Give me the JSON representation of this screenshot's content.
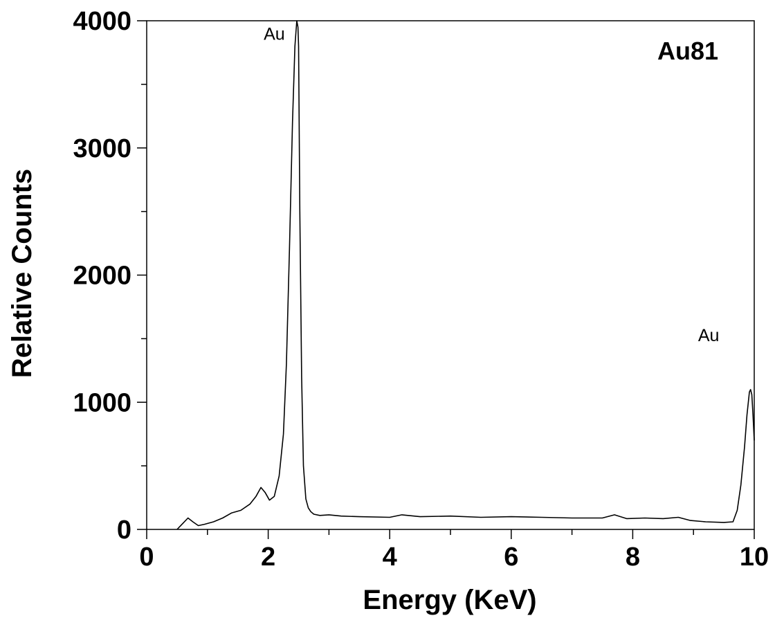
{
  "chart_data": {
    "type": "line",
    "title": "",
    "plot_label": "Au81",
    "xlabel": "Energy (KeV)",
    "ylabel": "Relative Counts",
    "xlim": [
      0,
      10
    ],
    "ylim": [
      0,
      4000
    ],
    "grid": false,
    "x_ticks": [
      0,
      2,
      4,
      6,
      8,
      10
    ],
    "x_tick_labels": [
      "0",
      "2",
      "4",
      "6",
      "8",
      "10"
    ],
    "y_ticks": [
      0,
      1000,
      2000,
      3000,
      4000
    ],
    "y_tick_labels": [
      "0",
      "1000",
      "2000",
      "3000",
      "4000"
    ],
    "annotations": [
      {
        "text": "Au",
        "x": 2.1,
        "y": 3850
      },
      {
        "text": "Au",
        "x": 9.25,
        "y": 1480
      }
    ],
    "series": [
      {
        "x": [
          0.5,
          0.6,
          0.68,
          0.76,
          0.85,
          0.95,
          1.1,
          1.25,
          1.4,
          1.55,
          1.7,
          1.8,
          1.88,
          1.95,
          2.02,
          2.1,
          2.18,
          2.25,
          2.3,
          2.35,
          2.4,
          2.44,
          2.47,
          2.49,
          2.5,
          2.52,
          2.55,
          2.58,
          2.62,
          2.66,
          2.7,
          2.75,
          2.85,
          3.0,
          3.2,
          3.5,
          4.0,
          4.2,
          4.5,
          5.0,
          5.5,
          6.0,
          6.5,
          7.0,
          7.5,
          7.7,
          7.9,
          8.2,
          8.5,
          8.75,
          8.95,
          9.2,
          9.5,
          9.65,
          9.72,
          9.78,
          9.84,
          9.88,
          9.92,
          9.94,
          9.96,
          9.98,
          10.0
        ],
        "values": [
          0,
          50,
          90,
          60,
          30,
          40,
          60,
          90,
          130,
          150,
          200,
          260,
          330,
          290,
          230,
          260,
          420,
          750,
          1300,
          2200,
          3200,
          3800,
          4000,
          3950,
          3800,
          2500,
          1200,
          500,
          240,
          170,
          140,
          120,
          110,
          115,
          105,
          100,
          95,
          115,
          100,
          105,
          95,
          100,
          95,
          90,
          90,
          115,
          85,
          90,
          85,
          95,
          70,
          60,
          55,
          60,
          150,
          350,
          650,
          900,
          1080,
          1100,
          1060,
          900,
          700
        ]
      }
    ]
  }
}
